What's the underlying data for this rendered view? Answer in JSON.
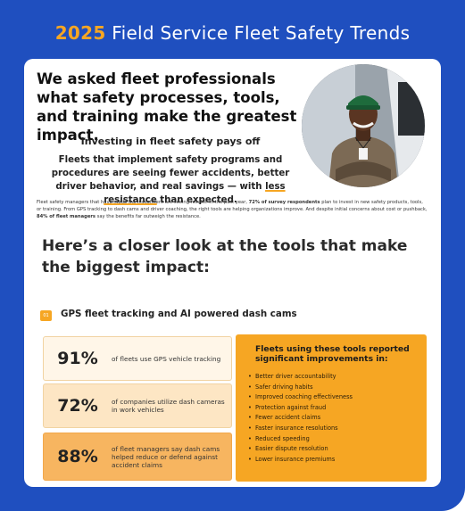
{
  "header": {
    "year": "2025",
    "title_rest": "Field Service Fleet Safety Trends"
  },
  "intro": {
    "heading": "We asked fleet professionals what safety processes, tools, and training make the greatest impact.",
    "subhead": "Investing in fleet safety pays off",
    "lead_before": "Fleets that implement safety programs and procedures are seeing fewer accidents, better driver behavior, and real savings — with ",
    "lead_highlight": "less resistance",
    "lead_after": " than expected.",
    "fine_before": "Fleet safety managers that have made the investment are seeing results. In the past year, ",
    "fine_bold1": "72% of survey respondents",
    "fine_middle": " plan to invest in new safety products, tools, or training. From GPS tracking to dash cams and driver coaching, the right tools are helping organizations improve. And despite initial concerns about cost or pushback, ",
    "fine_bold2": "84% of fleet managers",
    "fine_after": " say the benefits far outweigh the resistance."
  },
  "closer": "Here’s a closer look at the tools that make the biggest impact:",
  "section": {
    "number": "01",
    "title": "GPS fleet tracking and AI powered dash cams"
  },
  "stats": [
    {
      "pct": "91%",
      "desc": "of fleets use GPS vehicle tracking"
    },
    {
      "pct": "72%",
      "desc": "of companies utilize dash cameras in work vehicles"
    },
    {
      "pct": "88%",
      "desc": "of fleet managers say dash cams helped reduce or defend against accident claims"
    }
  ],
  "panel": {
    "title": "Fleets using these tools reported significant improvements in:",
    "items": [
      "Better driver accountability",
      "Safer driving habits",
      "Improved coaching effectiveness",
      "Protection against fraud",
      "Fewer accident claims",
      "Faster insurance resolutions",
      "Reduced speeding",
      "Easier dispute resolution",
      "Lower insurance premiums"
    ]
  },
  "colors": {
    "frame_blue": "#1f4fbf",
    "accent_orange": "#f6a623"
  }
}
